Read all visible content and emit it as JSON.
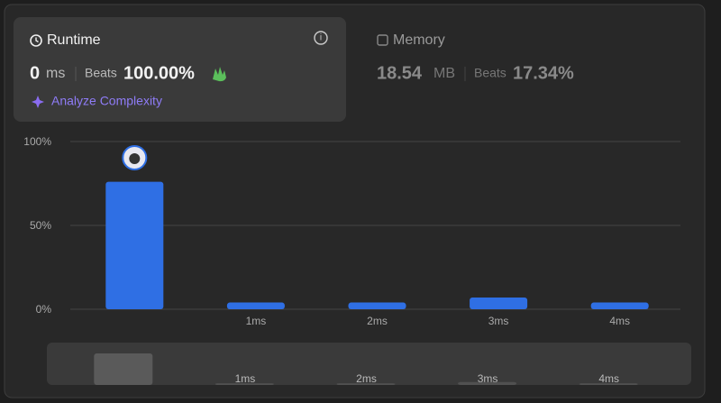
{
  "runtime": {
    "label": "Runtime",
    "value": "0",
    "unit": "ms",
    "beats_label": "Beats",
    "beats": "100.00%",
    "analyze": "Analyze Complexity"
  },
  "memory": {
    "label": "Memory",
    "value": "18.54",
    "unit": "MB",
    "beats_label": "Beats",
    "beats": "17.34%"
  },
  "chart_data": {
    "type": "bar",
    "categories": [
      null,
      "1ms",
      "2ms",
      "3ms",
      "4ms"
    ],
    "values": [
      76,
      4,
      4,
      7,
      4
    ],
    "ylim": [
      0,
      100
    ],
    "yticks": [
      {
        "value": 0,
        "label": "0%"
      },
      {
        "value": 50,
        "label": "50%"
      },
      {
        "value": 100,
        "label": "100%"
      }
    ],
    "color": "#2f6fe4",
    "grid": true
  }
}
